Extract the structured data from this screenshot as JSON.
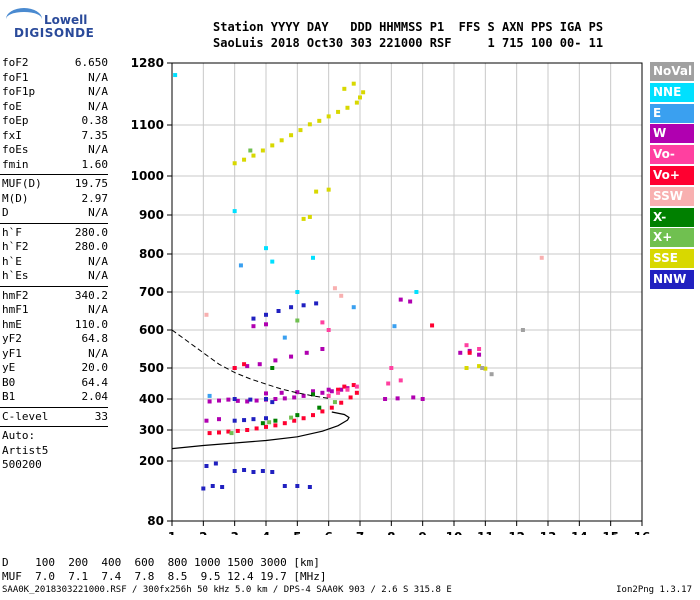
{
  "logo": {
    "line1": "Lowell",
    "line2": "DIGISONDE"
  },
  "header": {
    "line1": "Station YYYY DAY   DDD HHMMSS P1  FFS S AXN PPS IGA PS",
    "line2": "SaoLuis 2018 Oct30 303 221000 RSF     1 715 100 00- 11"
  },
  "scaled": [
    {
      "name": "foF2",
      "value": "6.650"
    },
    {
      "name": "foF1",
      "value": "N/A"
    },
    {
      "name": "foF1p",
      "value": "N/A"
    },
    {
      "name": "foE",
      "value": "N/A"
    },
    {
      "name": "foEp",
      "value": "0.38"
    },
    {
      "name": "fxI",
      "value": "7.35"
    },
    {
      "name": "foEs",
      "value": "N/A"
    },
    {
      "name": "fmin",
      "value": "1.60"
    },
    {
      "sep": true
    },
    {
      "name": "MUF(D)",
      "value": "19.75"
    },
    {
      "name": "M(D)",
      "value": "2.97"
    },
    {
      "name": "D",
      "value": "N/A"
    },
    {
      "sep": true
    },
    {
      "name": "h`F",
      "value": "280.0"
    },
    {
      "name": "h`F2",
      "value": "280.0"
    },
    {
      "name": "h`E",
      "value": "N/A"
    },
    {
      "name": "h`Es",
      "value": "N/A"
    },
    {
      "sep": true
    },
    {
      "name": "hmF2",
      "value": "340.2"
    },
    {
      "name": "hmF1",
      "value": "N/A"
    },
    {
      "name": "hmE",
      "value": "110.0"
    },
    {
      "name": "yF2",
      "value": "64.8"
    },
    {
      "name": "yF1",
      "value": "N/A"
    },
    {
      "name": "yE",
      "value": "20.0"
    },
    {
      "name": "B0",
      "value": "64.4"
    },
    {
      "name": "B1",
      "value": "2.04"
    },
    {
      "sep": true
    },
    {
      "name": "C-level",
      "value": "33"
    },
    {
      "sep": true
    },
    {
      "name": "Auto:",
      "value": ""
    },
    {
      "name": "Artist5",
      "value": ""
    },
    {
      "name": "500200",
      "value": ""
    }
  ],
  "legend": [
    {
      "label": "NoVal",
      "color": "#a0a0a0"
    },
    {
      "label": "NNE",
      "color": "#00e0ff"
    },
    {
      "label": "E",
      "color": "#3aa0f0"
    },
    {
      "label": "W",
      "color": "#b000b0"
    },
    {
      "label": "Vo-",
      "color": "#ff40a0"
    },
    {
      "label": "Vo+",
      "color": "#ff0030"
    },
    {
      "label": "SSW",
      "color": "#f8b0b0"
    },
    {
      "label": "X-",
      "color": "#008000"
    },
    {
      "label": "X+",
      "color": "#70c050"
    },
    {
      "label": "SSE",
      "color": "#d8d800"
    },
    {
      "label": "NNW",
      "color": "#2020c0"
    }
  ],
  "dmuf": {
    "line1": "D    100  200  400  600  800 1000 1500 3000 [km]",
    "line2": "MUF  7.0  7.1  7.4  7.8  8.5  9.5 12.4 19.7 [MHz]"
  },
  "footer": "SAA0K_2018303221000.RSF / 300fx256h 50 kHz 5.0 km / DPS-4 SAA0K 903 / 2.6 S 315.8 E",
  "version": "Ion2Png 1.3.17",
  "chart_data": {
    "type": "scatter",
    "xlim": [
      1,
      16
    ],
    "ylim": [
      80,
      1280
    ],
    "x_ticks": [
      1,
      2,
      3,
      4,
      5,
      6,
      7,
      8,
      9,
      10,
      11,
      12,
      13,
      14,
      15,
      16
    ],
    "y_ticks": [
      80,
      200,
      300,
      400,
      500,
      600,
      700,
      800,
      900,
      1000,
      1100,
      1280
    ],
    "grid": true,
    "series": [
      {
        "name": "W",
        "color": "#b000b0",
        "points": [
          [
            2.2,
            392
          ],
          [
            2.5,
            395
          ],
          [
            2.8,
            398
          ],
          [
            3.1,
            394
          ],
          [
            3.4,
            392
          ],
          [
            3.7,
            395
          ],
          [
            4.0,
            398
          ],
          [
            4.3,
            400
          ],
          [
            4.6,
            402
          ],
          [
            4.9,
            405
          ],
          [
            5.2,
            410
          ],
          [
            5.5,
            415
          ],
          [
            5.8,
            420
          ],
          [
            6.1,
            425
          ],
          [
            6.4,
            430
          ],
          [
            6.6,
            435
          ],
          [
            7.8,
            400
          ],
          [
            8.2,
            402
          ],
          [
            8.7,
            405
          ],
          [
            9.0,
            400
          ],
          [
            2.1,
            330
          ],
          [
            2.5,
            335
          ],
          [
            3.0,
            500
          ],
          [
            3.4,
            505
          ],
          [
            3.8,
            510
          ],
          [
            4.3,
            520
          ],
          [
            4.8,
            530
          ],
          [
            5.3,
            540
          ],
          [
            5.8,
            550
          ],
          [
            4.0,
            418
          ],
          [
            4.5,
            420
          ],
          [
            5.0,
            422
          ],
          [
            5.5,
            425
          ],
          [
            6.0,
            430
          ],
          [
            10.2,
            540
          ],
          [
            10.5,
            545
          ],
          [
            10.8,
            535
          ],
          [
            8.3,
            680
          ],
          [
            8.6,
            675
          ],
          [
            3.6,
            610
          ],
          [
            4.0,
            615
          ]
        ]
      },
      {
        "name": "NNW",
        "color": "#2020c0",
        "points": [
          [
            2.0,
            145
          ],
          [
            2.3,
            150
          ],
          [
            2.6,
            148
          ],
          [
            3.0,
            180
          ],
          [
            3.3,
            182
          ],
          [
            3.6,
            178
          ],
          [
            3.9,
            180
          ],
          [
            4.2,
            178
          ],
          [
            4.6,
            150
          ],
          [
            5.0,
            150
          ],
          [
            5.4,
            148
          ],
          [
            2.1,
            190
          ],
          [
            2.4,
            195
          ],
          [
            3.0,
            330
          ],
          [
            3.3,
            332
          ],
          [
            3.6,
            335
          ],
          [
            4.0,
            338
          ],
          [
            3.0,
            400
          ],
          [
            3.5,
            398
          ],
          [
            4.0,
            400
          ],
          [
            4.2,
            390
          ],
          [
            3.6,
            630
          ],
          [
            4.0,
            640
          ],
          [
            4.4,
            650
          ],
          [
            4.8,
            660
          ],
          [
            5.2,
            665
          ],
          [
            5.6,
            670
          ]
        ]
      },
      {
        "name": "Vo+",
        "color": "#ff0030",
        "points": [
          [
            2.2,
            290
          ],
          [
            2.5,
            292
          ],
          [
            2.8,
            295
          ],
          [
            3.1,
            297
          ],
          [
            3.4,
            300
          ],
          [
            3.7,
            305
          ],
          [
            4.0,
            310
          ],
          [
            4.3,
            315
          ],
          [
            4.6,
            322
          ],
          [
            4.9,
            330
          ],
          [
            5.2,
            338
          ],
          [
            5.5,
            348
          ],
          [
            5.8,
            360
          ],
          [
            6.1,
            372
          ],
          [
            6.4,
            388
          ],
          [
            6.7,
            405
          ],
          [
            6.9,
            420
          ],
          [
            6.3,
            430
          ],
          [
            6.5,
            440
          ],
          [
            6.8,
            445
          ],
          [
            3.0,
            500
          ],
          [
            3.3,
            510
          ],
          [
            10.5,
            540
          ],
          [
            9.3,
            612
          ]
        ]
      },
      {
        "name": "Vo-",
        "color": "#ff40a0",
        "points": [
          [
            6.0,
            410
          ],
          [
            6.3,
            420
          ],
          [
            6.6,
            430
          ],
          [
            6.9,
            440
          ],
          [
            7.9,
            450
          ],
          [
            8.3,
            460
          ],
          [
            8.0,
            500
          ],
          [
            10.4,
            560
          ],
          [
            10.8,
            550
          ],
          [
            5.8,
            620
          ],
          [
            6.0,
            600
          ]
        ]
      },
      {
        "name": "SSE",
        "color": "#d8d800",
        "points": [
          [
            3.0,
            1025
          ],
          [
            3.3,
            1032
          ],
          [
            3.6,
            1040
          ],
          [
            3.9,
            1050
          ],
          [
            4.2,
            1060
          ],
          [
            4.5,
            1070
          ],
          [
            4.8,
            1080
          ],
          [
            5.1,
            1090
          ],
          [
            5.4,
            1102
          ],
          [
            5.7,
            1112
          ],
          [
            6.0,
            1125
          ],
          [
            6.3,
            1138
          ],
          [
            6.6,
            1150
          ],
          [
            6.9,
            1165
          ],
          [
            7.0,
            1180
          ],
          [
            7.1,
            1195
          ],
          [
            6.8,
            1220
          ],
          [
            6.5,
            1205
          ],
          [
            5.2,
            890
          ],
          [
            5.4,
            895
          ],
          [
            10.4,
            500
          ],
          [
            10.8,
            505
          ],
          [
            11.0,
            498
          ],
          [
            5.6,
            960
          ],
          [
            6.0,
            965
          ]
        ]
      },
      {
        "name": "X-",
        "color": "#008000",
        "points": [
          [
            3.9,
            322
          ],
          [
            4.3,
            330
          ],
          [
            5.0,
            348
          ],
          [
            5.7,
            372
          ],
          [
            4.2,
            500
          ],
          [
            5.5,
            415
          ]
        ]
      },
      {
        "name": "X+",
        "color": "#70c050",
        "points": [
          [
            4.1,
            325
          ],
          [
            4.8,
            340
          ],
          [
            6.2,
            390
          ],
          [
            3.5,
            1050
          ],
          [
            5.0,
            625
          ],
          [
            2.9,
            290
          ]
        ]
      },
      {
        "name": "NNE",
        "color": "#00e0ff",
        "points": [
          [
            4.0,
            815
          ],
          [
            4.2,
            780
          ],
          [
            1.1,
            1245
          ],
          [
            3.0,
            910
          ],
          [
            5.0,
            700
          ],
          [
            5.5,
            790
          ],
          [
            8.8,
            700
          ]
        ]
      },
      {
        "name": "E",
        "color": "#3aa0f0",
        "points": [
          [
            3.2,
            770
          ],
          [
            4.6,
            580
          ],
          [
            6.8,
            660
          ],
          [
            8.1,
            610
          ],
          [
            2.2,
            410
          ]
        ]
      },
      {
        "name": "SSW",
        "color": "#f8b0b0",
        "points": [
          [
            6.2,
            710
          ],
          [
            6.4,
            690
          ],
          [
            12.8,
            790
          ],
          [
            2.1,
            640
          ]
        ]
      },
      {
        "name": "NoVal",
        "color": "#a0a0a0",
        "points": [
          [
            10.9,
            500
          ],
          [
            11.2,
            480
          ],
          [
            12.2,
            600
          ]
        ]
      }
    ],
    "profile_curve": [
      [
        1,
        240
      ],
      [
        2,
        250
      ],
      [
        3,
        258
      ],
      [
        4,
        266
      ],
      [
        5,
        278
      ],
      [
        5.8,
        296
      ],
      [
        6.3,
        314
      ],
      [
        6.6,
        332
      ],
      [
        6.65,
        340.2
      ],
      [
        6.5,
        350
      ],
      [
        6.1,
        358
      ]
    ],
    "dashed_curve": [
      [
        1,
        600
      ],
      [
        1.5,
        570
      ],
      [
        2,
        540
      ],
      [
        2.5,
        510
      ],
      [
        3,
        485
      ],
      [
        3.5,
        465
      ],
      [
        4,
        448
      ],
      [
        4.5,
        432
      ],
      [
        5,
        420
      ],
      [
        5.5,
        410
      ],
      [
        6,
        402
      ]
    ]
  }
}
